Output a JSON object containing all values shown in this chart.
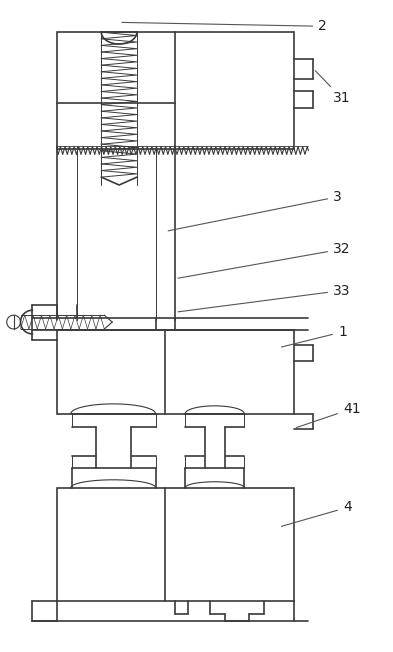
{
  "fig_width": 3.93,
  "fig_height": 6.52,
  "dpi": 100,
  "bg_color": "#ffffff",
  "line_color": "#3a3a3a",
  "lw": 1.2,
  "lw_thin": 0.7,
  "label_fontsize": 10
}
